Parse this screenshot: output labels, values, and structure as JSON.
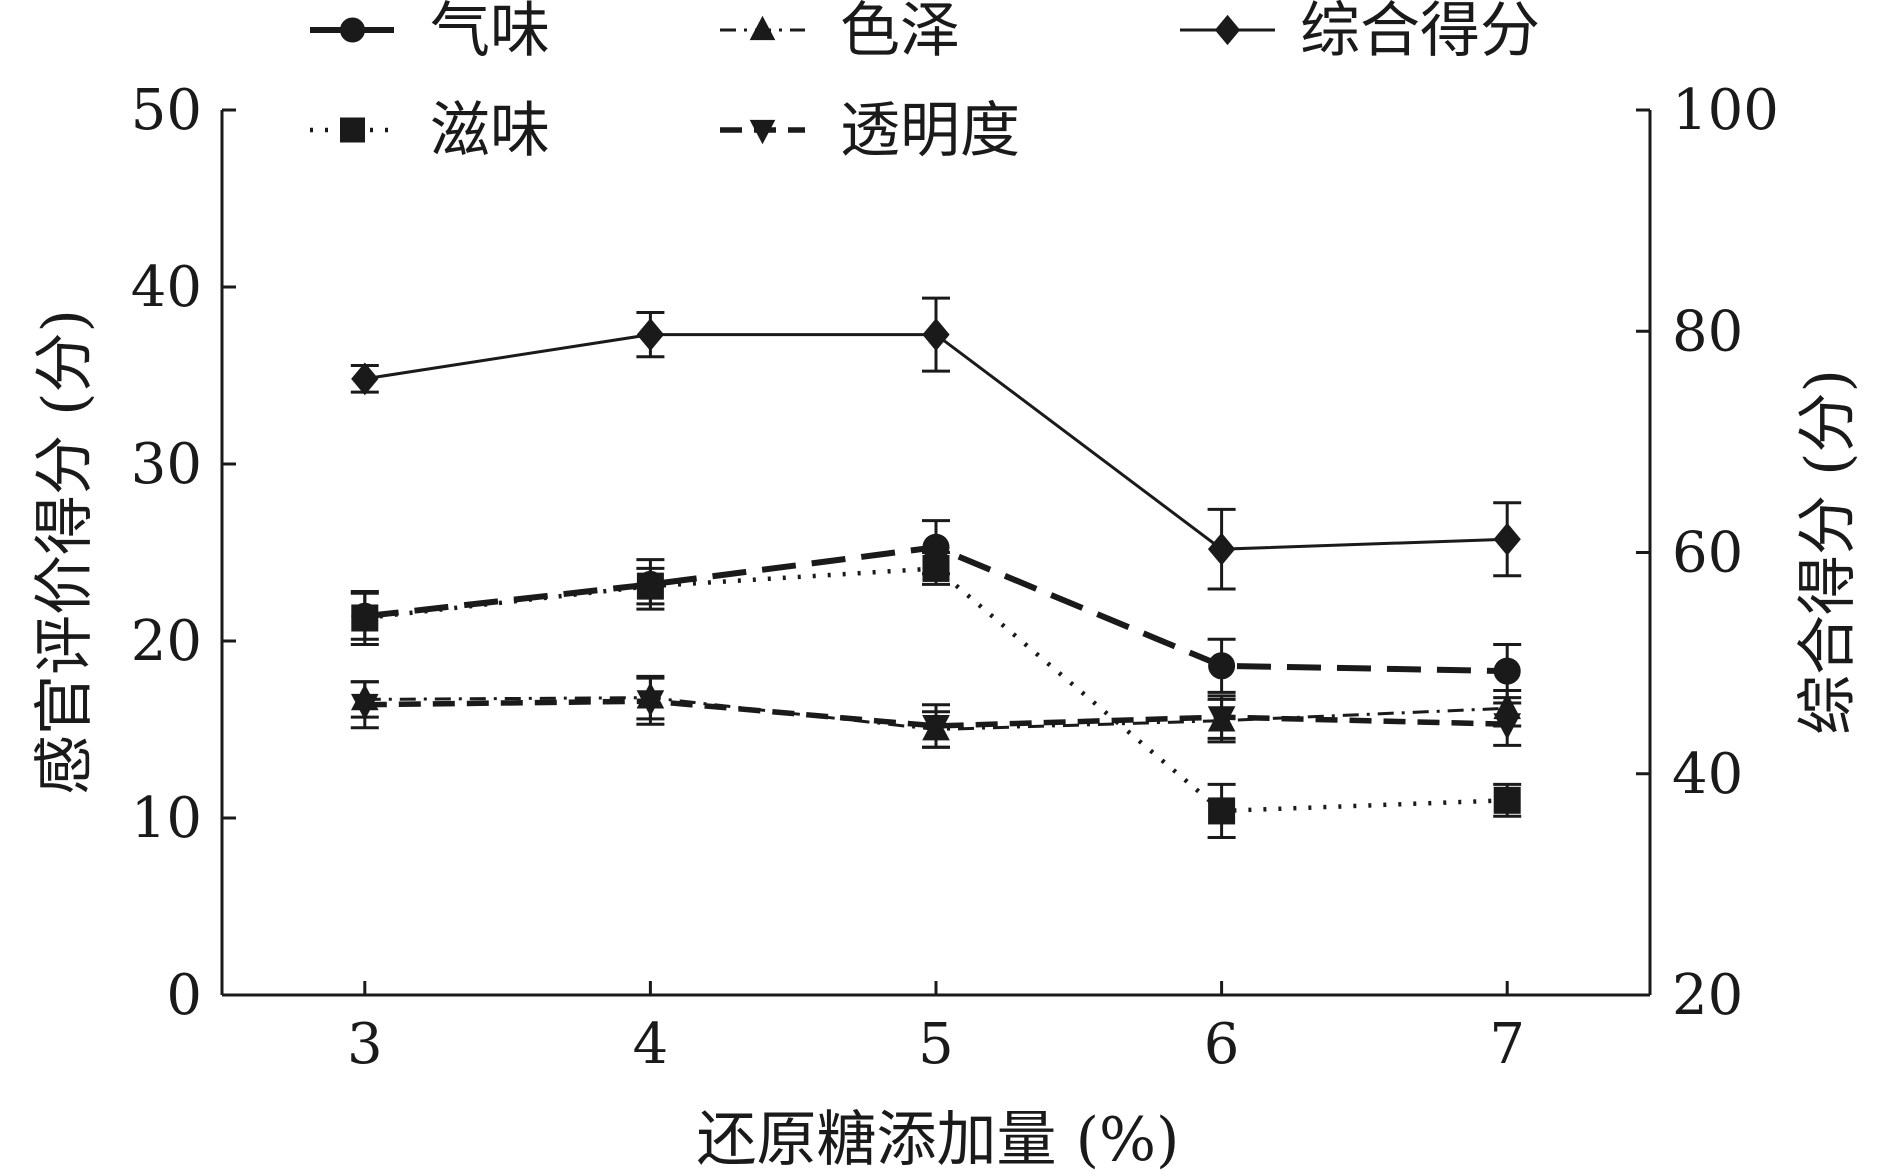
{
  "chart_data": {
    "type": "line",
    "xlabel": "还原糖添加量 (%)",
    "ylabel": "感官评价得分 (分)",
    "y2label": "综合得分 (分)",
    "x": [
      3,
      4,
      5,
      6,
      7
    ],
    "x_ticks": [
      "3",
      "4",
      "5",
      "6",
      "7"
    ],
    "xlim": [
      2.5,
      7.5
    ],
    "ylim": [
      0,
      50
    ],
    "y_ticks": [
      "0",
      "10",
      "20",
      "30",
      "40",
      "50"
    ],
    "y2lim": [
      20,
      100
    ],
    "y2_ticks": [
      "20",
      "40",
      "60",
      "80",
      "100"
    ],
    "grid": false,
    "legend_position": "top",
    "series": [
      {
        "name": "气味",
        "axis": "left",
        "marker": "circle",
        "dash": "long-dash",
        "values": [
          21.4,
          23.2,
          25.3,
          18.6,
          18.3
        ],
        "errors": [
          1.3,
          1.4,
          1.5,
          1.5,
          1.5
        ]
      },
      {
        "name": "色泽",
        "axis": "left",
        "marker": "triangle-up",
        "dash": "dash-dot",
        "values": [
          16.7,
          16.8,
          15.0,
          15.5,
          16.2
        ],
        "errors": [
          1.0,
          1.2,
          1.0,
          1.2,
          1.0
        ]
      },
      {
        "name": "综合得分",
        "axis": "right",
        "marker": "diamond",
        "dash": "solid",
        "values": [
          75.7,
          79.7,
          79.7,
          60.3,
          61.2
        ],
        "errors": [
          1.2,
          2.0,
          3.3,
          3.6,
          3.3
        ]
      },
      {
        "name": "滋味",
        "axis": "left",
        "marker": "square",
        "dash": "dotted",
        "values": [
          21.3,
          23.1,
          24.1,
          10.4,
          11.0
        ],
        "errors": [
          1.5,
          1.0,
          0.9,
          1.5,
          0.9
        ]
      },
      {
        "name": "透明度",
        "axis": "left",
        "marker": "triangle-down",
        "dash": "medium-dash",
        "values": [
          16.4,
          16.6,
          15.2,
          15.7,
          15.3
        ],
        "errors": [
          1.3,
          1.3,
          1.2,
          1.2,
          1.2
        ]
      }
    ]
  }
}
